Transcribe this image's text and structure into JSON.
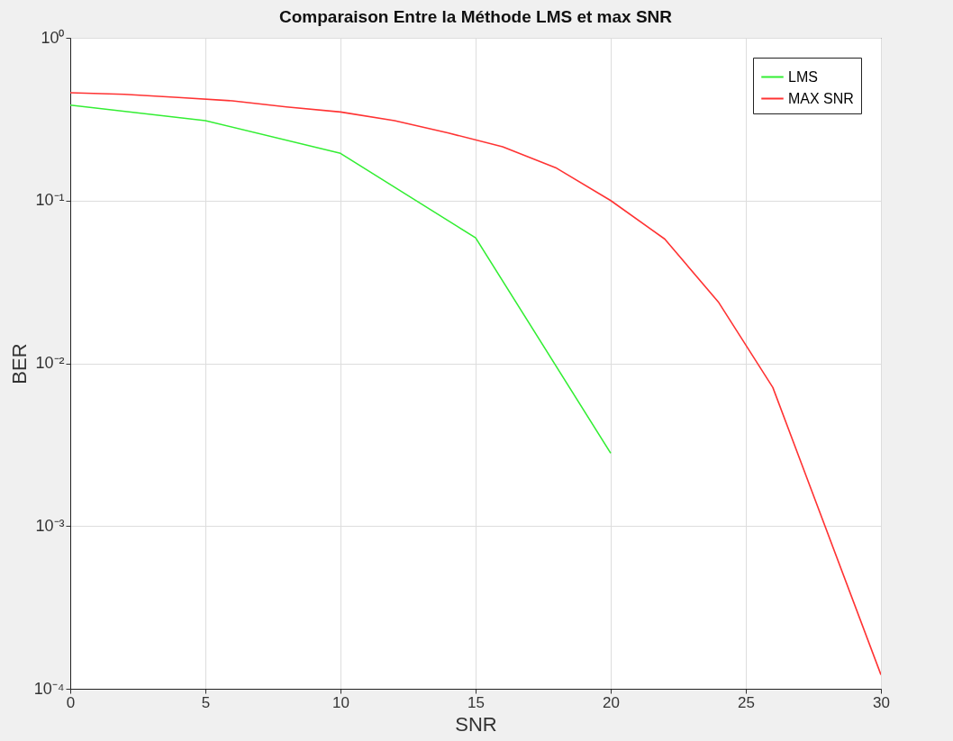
{
  "chart_data": {
    "type": "line",
    "title": "Comparaison Entre la Méthode LMS et max SNR",
    "xlabel": "SNR",
    "ylabel": "BER",
    "series": [
      {
        "name": "LMS",
        "color": "#33ee33",
        "x": [
          0,
          5,
          10,
          15,
          20
        ],
        "values": [
          0.386,
          0.31,
          0.195,
          0.059,
          0.0028
        ]
      },
      {
        "name": "MAX SNR",
        "color": "#ff3333",
        "x": [
          0,
          2,
          4,
          6,
          8,
          10,
          12,
          14,
          16,
          18,
          20,
          22,
          24,
          26,
          30
        ],
        "values": [
          0.46,
          0.45,
          0.43,
          0.41,
          0.376,
          0.35,
          0.31,
          0.26,
          0.214,
          0.158,
          0.1,
          0.058,
          0.0236,
          0.0071,
          0.000122
        ]
      }
    ],
    "xlim": [
      0,
      30
    ],
    "xticks": [
      0,
      5,
      10,
      15,
      20,
      25,
      30
    ],
    "ylim": [
      0.0001,
      1
    ],
    "yticks": [
      {
        "value": 0.0001,
        "label": "10⁻⁴"
      },
      {
        "value": 0.001,
        "label": "10⁻³"
      },
      {
        "value": 0.01,
        "label": "10⁻²"
      },
      {
        "value": 0.1,
        "label": "10⁻¹"
      },
      {
        "value": 1,
        "label": "10⁰"
      }
    ],
    "log": true,
    "grid": true,
    "legend": "top right",
    "marker": "none",
    "line_style": "solid"
  }
}
